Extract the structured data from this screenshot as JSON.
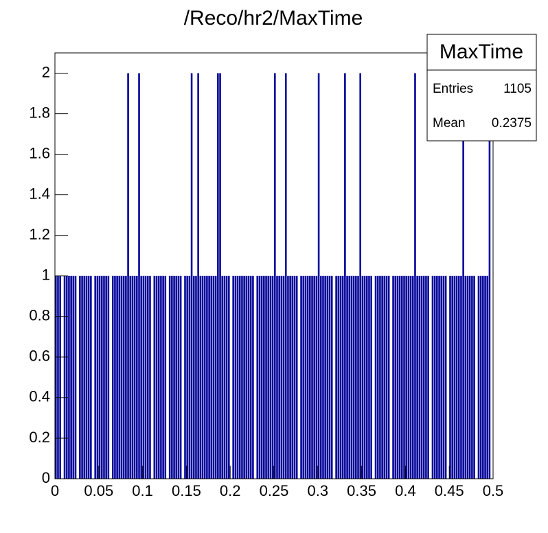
{
  "chart_data": {
    "type": "histogram",
    "title": "/Reco/hr2/MaxTime",
    "bins": [
      0,
      0.0025,
      0.005,
      0.0075,
      0.01,
      0.0125,
      0.015,
      0.0175,
      0.02,
      0.0225,
      0.025,
      0.0275,
      0.03,
      0.0325,
      0.035,
      0.0375,
      0.04,
      0.0425,
      0.045,
      0.0475,
      0.05,
      0.0525,
      0.055,
      0.0575,
      0.06,
      0.0625,
      0.065,
      0.0675,
      0.07,
      0.0725,
      0.075,
      0.0775,
      0.08,
      0.0825,
      0.085,
      0.0875,
      0.09,
      0.0925,
      0.095,
      0.0975,
      0.1,
      0.1025,
      0.105,
      0.1075,
      0.11,
      0.1125,
      0.115,
      0.1175,
      0.12,
      0.1225,
      0.125,
      0.1275,
      0.13,
      0.1325,
      0.135,
      0.1375,
      0.14,
      0.1425,
      0.145,
      0.1475,
      0.15,
      0.1525,
      0.155,
      0.1575,
      0.16,
      0.1625,
      0.165,
      0.1675,
      0.17,
      0.1725,
      0.175,
      0.1775,
      0.18,
      0.1825,
      0.185,
      0.1875,
      0.19,
      0.1925,
      0.195,
      0.1975,
      0.2,
      0.2025,
      0.205,
      0.2075,
      0.21,
      0.2125,
      0.215,
      0.2175,
      0.22,
      0.2225,
      0.225,
      0.2275,
      0.23,
      0.2325,
      0.235,
      0.2375,
      0.24,
      0.2425,
      0.245,
      0.2475,
      0.25,
      0.2525,
      0.255,
      0.2575,
      0.26,
      0.2625,
      0.265,
      0.2675,
      0.27,
      0.2725,
      0.275,
      0.2775,
      0.28,
      0.2825,
      0.285,
      0.2875,
      0.29,
      0.2925,
      0.295,
      0.2975,
      0.3,
      0.3025,
      0.305,
      0.3075,
      0.31,
      0.3125,
      0.315,
      0.3175,
      0.32,
      0.3225,
      0.325,
      0.3275,
      0.33,
      0.3325,
      0.335,
      0.3375,
      0.34,
      0.3425,
      0.345,
      0.3475,
      0.35,
      0.3525,
      0.355,
      0.3575,
      0.36,
      0.3625,
      0.365,
      0.3675,
      0.37,
      0.3725,
      0.375,
      0.3775,
      0.38,
      0.3825,
      0.385,
      0.3875,
      0.39,
      0.3925,
      0.395,
      0.3975,
      0.4,
      0.4025,
      0.405,
      0.4075,
      0.41,
      0.4125,
      0.415,
      0.4175,
      0.42,
      0.4225,
      0.425,
      0.4275,
      0.43,
      0.4325,
      0.435,
      0.4375,
      0.44,
      0.4425,
      0.445,
      0.4475,
      0.45,
      0.4525,
      0.455,
      0.4575,
      0.46,
      0.4625,
      0.465,
      0.4675,
      0.47,
      0.4725,
      0.475,
      0.4775,
      0.48,
      0.4825,
      0.485,
      0.4875,
      0.49,
      0.4925,
      0.495,
      0.4975,
      0.5
    ],
    "values": [
      1,
      1,
      1,
      0,
      1,
      1,
      1,
      1,
      1,
      1,
      0,
      1,
      1,
      1,
      1,
      1,
      1,
      0,
      1,
      1,
      1,
      1,
      1,
      1,
      1,
      0,
      1,
      1,
      1,
      1,
      1,
      1,
      1,
      2,
      1,
      1,
      1,
      1,
      2,
      1,
      1,
      1,
      1,
      1,
      0,
      1,
      1,
      1,
      1,
      1,
      1,
      0,
      1,
      1,
      1,
      1,
      1,
      1,
      0,
      1,
      1,
      1,
      2,
      1,
      1,
      2,
      1,
      1,
      1,
      1,
      1,
      1,
      1,
      1,
      2,
      2,
      1,
      1,
      1,
      1,
      0,
      1,
      1,
      1,
      1,
      1,
      1,
      1,
      1,
      1,
      1,
      0,
      1,
      1,
      1,
      1,
      1,
      1,
      1,
      1,
      2,
      1,
      1,
      1,
      1,
      2,
      1,
      1,
      1,
      1,
      1,
      0,
      1,
      1,
      1,
      1,
      1,
      1,
      1,
      1,
      2,
      1,
      1,
      1,
      1,
      1,
      1,
      0,
      1,
      1,
      1,
      1,
      2,
      1,
      1,
      1,
      1,
      1,
      1,
      2,
      1,
      1,
      1,
      1,
      1,
      0,
      1,
      1,
      1,
      1,
      1,
      1,
      1,
      0,
      1,
      1,
      1,
      1,
      1,
      1,
      1,
      1,
      1,
      1,
      2,
      1,
      1,
      1,
      1,
      1,
      1,
      0,
      1,
      1,
      1,
      1,
      1,
      1,
      1,
      0,
      1,
      1,
      1,
      1,
      1,
      1,
      2,
      1,
      1,
      1,
      1,
      1,
      0,
      1,
      1,
      1,
      1,
      1,
      2,
      0
    ],
    "color": "#000099",
    "xlim": [
      0,
      0.5
    ],
    "xticks": [
      0,
      0.05,
      0.1,
      0.15,
      0.2,
      0.25,
      0.3,
      0.35,
      0.4,
      0.45,
      0.5
    ],
    "ylim": [
      0,
      2.1
    ],
    "yticks": [
      0,
      0.2,
      0.4,
      0.6,
      0.8,
      1,
      1.2,
      1.4,
      1.6,
      1.8,
      2
    ],
    "stats": {
      "title": "MaxTime",
      "entries_label": "Entries",
      "entries": 1105,
      "mean_label": "Mean",
      "mean": 0.2375
    }
  }
}
